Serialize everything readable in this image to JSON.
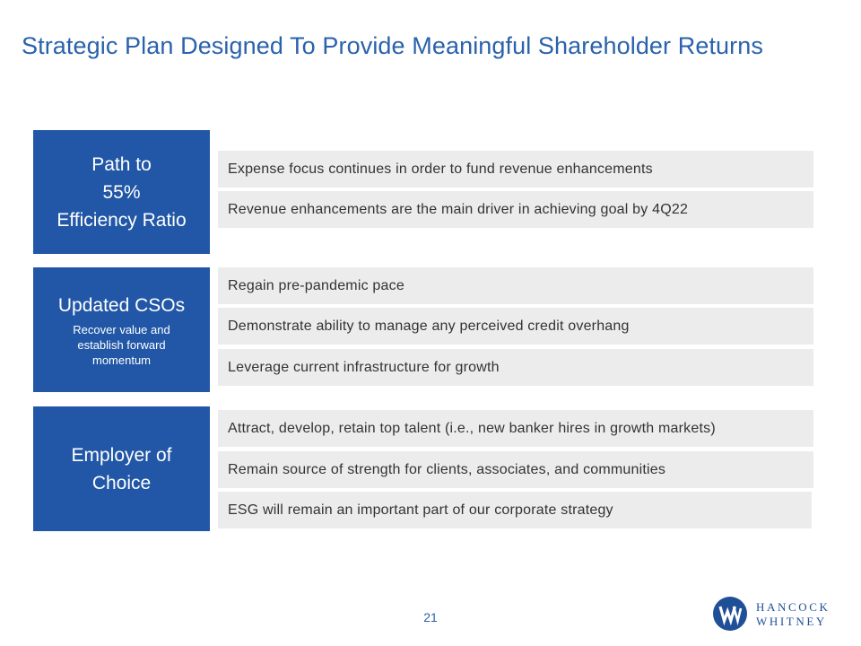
{
  "title": "Strategic Plan Designed To Provide Meaningful Shareholder Returns",
  "sections": [
    {
      "heading_lines": [
        "Path to",
        "55%",
        "Efficiency Ratio"
      ],
      "subtext": "",
      "items": [
        "Expense focus continues in order to fund revenue enhancements",
        "Revenue enhancements are the main driver in achieving goal by 4Q22"
      ]
    },
    {
      "heading_lines": [
        "Updated CSOs"
      ],
      "subtext": "Recover value and establish forward momentum",
      "items": [
        "Regain pre-pandemic pace",
        "Demonstrate ability to manage any perceived credit overhang",
        "Leverage current infrastructure for growth"
      ]
    },
    {
      "heading_lines": [
        "Employer of",
        "Choice"
      ],
      "subtext": "",
      "items": [
        "Attract, develop, retain top talent (i.e., new banker hires in growth markets)",
        "Remain source of strength for clients, associates, and communities",
        "ESG will remain an important part of our corporate strategy"
      ]
    }
  ],
  "page_number": "21",
  "logo": {
    "icon": "hancock-whitney-w-icon",
    "line1": "HANCOCK",
    "line2": "WHITNEY",
    "color": "#1f4f96"
  },
  "colors": {
    "title": "#2a62ab",
    "block": "#2157a6",
    "bar": "#ececec"
  }
}
